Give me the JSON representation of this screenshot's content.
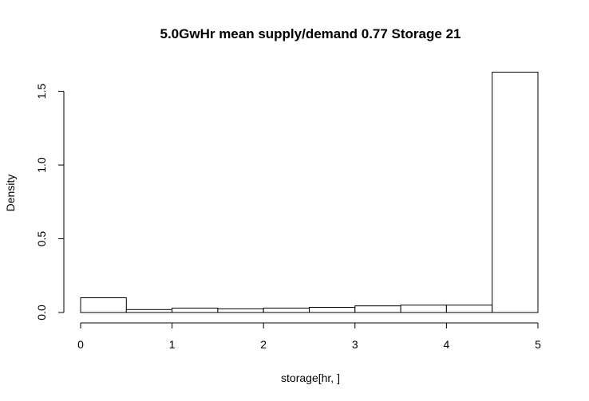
{
  "chart_data": {
    "type": "bar",
    "title": "5.0GwHr mean supply/demand 0.77  Storage 21",
    "xlabel": "storage[hr, ]",
    "ylabel": "Density",
    "bin_edges": [
      0,
      0.5,
      1,
      1.5,
      2,
      2.5,
      3,
      3.5,
      4,
      4.5,
      5
    ],
    "values": [
      0.1,
      0.02,
      0.03,
      0.025,
      0.03,
      0.035,
      0.045,
      0.05,
      0.05,
      1.63
    ],
    "xlim": [
      0,
      5
    ],
    "ylim": [
      0,
      1.63
    ],
    "x_ticks": [
      0,
      1,
      2,
      3,
      4,
      5
    ],
    "x_tick_labels": [
      "0",
      "1",
      "2",
      "3",
      "4",
      "5"
    ],
    "y_ticks": [
      0.0,
      0.5,
      1.0,
      1.5
    ],
    "y_tick_labels": [
      "0.0",
      "0.5",
      "1.0",
      "1.5"
    ],
    "grid": false,
    "bar_fill": "#ffffff",
    "bar_stroke": "#000000"
  }
}
